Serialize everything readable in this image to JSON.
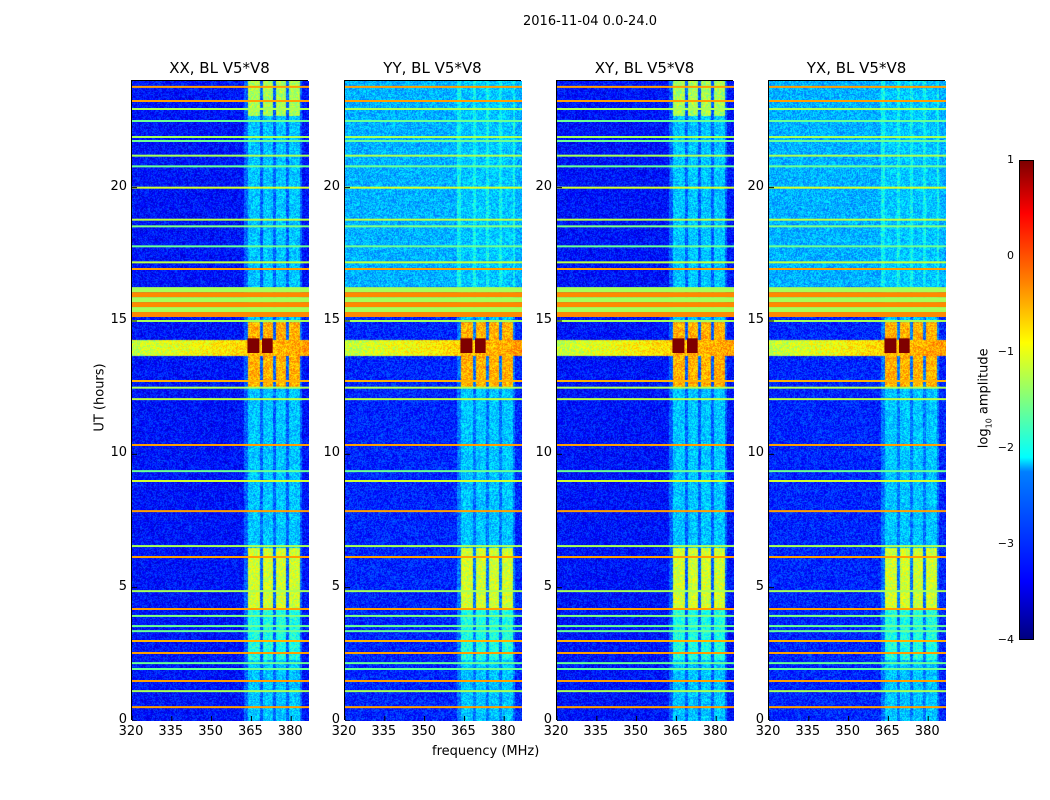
{
  "suptitle": "2016-11-04 0.0-24.0",
  "chart_data": {
    "type": "heatmap",
    "xlabel": "frequency (MHz)",
    "ylabel": "UT (hours)",
    "xlim": [
      320,
      386.7
    ],
    "ylim": [
      0,
      24
    ],
    "xticks": [
      "320",
      "335",
      "350",
      "365",
      "380"
    ],
    "xtick_values": [
      320,
      335,
      350,
      365,
      380
    ],
    "yticks": [
      "0",
      "5",
      "10",
      "15",
      "20"
    ],
    "ytick_values": [
      0,
      5,
      10,
      15,
      20
    ],
    "panels": [
      {
        "title": "XX, BL V5*V8",
        "background": -3.3,
        "upper_background": -3.2
      },
      {
        "title": "YY, BL V5*V8",
        "background": -3.2,
        "upper_background": -2.5
      },
      {
        "title": "XY, BL V5*V8",
        "background": -3.3,
        "upper_background": -3.2
      },
      {
        "title": "YX, BL V5*V8",
        "background": -3.2,
        "upper_background": -2.5
      }
    ],
    "rfi_lines": [
      {
        "t": 23.78,
        "v": -0.4
      },
      {
        "t": 23.25,
        "v": -0.4
      },
      {
        "t": 22.95,
        "v": -1.3
      },
      {
        "t": 22.5,
        "v": -1.6
      },
      {
        "t": 21.9,
        "v": -1.3
      },
      {
        "t": 21.75,
        "v": -1.6
      },
      {
        "t": 21.2,
        "v": -1.3
      },
      {
        "t": 20.8,
        "v": -1.6
      },
      {
        "t": 20.0,
        "v": -1.1
      },
      {
        "t": 18.8,
        "v": -1.2
      },
      {
        "t": 18.55,
        "v": -1.5
      },
      {
        "t": 17.8,
        "v": -1.6
      },
      {
        "t": 17.2,
        "v": -1.2
      },
      {
        "t": 16.95,
        "v": -0.4
      },
      {
        "t": 15.0,
        "v": -1.3
      },
      {
        "t": 12.75,
        "v": -0.5
      },
      {
        "t": 12.5,
        "v": -1.3
      },
      {
        "t": 12.07,
        "v": -1.2
      },
      {
        "t": 10.35,
        "v": -0.4
      },
      {
        "t": 9.37,
        "v": -1.6
      },
      {
        "t": 9.0,
        "v": -1.1
      },
      {
        "t": 7.87,
        "v": -0.4
      },
      {
        "t": 6.56,
        "v": -1.3
      },
      {
        "t": 6.15,
        "v": -0.4
      },
      {
        "t": 4.87,
        "v": -1.3
      },
      {
        "t": 4.2,
        "v": -0.4
      },
      {
        "t": 3.94,
        "v": -1.5
      },
      {
        "t": 3.56,
        "v": -1.6
      },
      {
        "t": 3.37,
        "v": -1.6
      },
      {
        "t": 3.0,
        "v": -0.5
      },
      {
        "t": 2.55,
        "v": -0.4
      },
      {
        "t": 2.17,
        "v": -1.6
      },
      {
        "t": 1.95,
        "v": -1.6
      },
      {
        "t": 1.5,
        "v": -0.4
      },
      {
        "t": 1.12,
        "v": -1.3
      },
      {
        "t": 0.52,
        "v": -0.4
      }
    ],
    "strong_band": {
      "t0": 15.15,
      "t1": 16.27,
      "v": -0.3
    },
    "strong_line": {
      "t": 14.1,
      "v": 0.8
    },
    "bright_channels_mhz": [
      [
        363.5,
        368
      ],
      [
        369,
        373
      ],
      [
        374,
        378
      ],
      [
        379,
        383
      ]
    ],
    "colorbar": {
      "label": "log10 amplitude",
      "ticks": [
        "1",
        "0",
        "−1",
        "−2",
        "−3",
        "−4"
      ],
      "tick_values": [
        1,
        0,
        -1,
        -2,
        -3,
        -4
      ],
      "range": [
        -4,
        1
      ]
    }
  }
}
